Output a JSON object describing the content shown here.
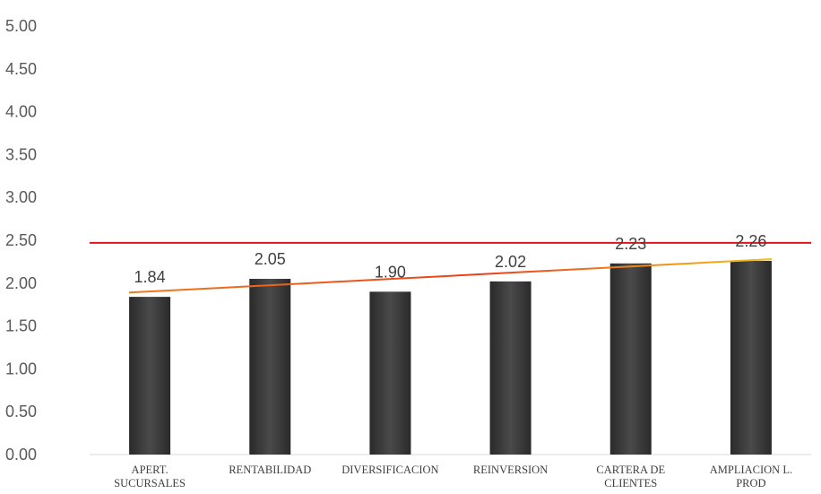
{
  "chart_data": {
    "type": "bar",
    "categories": [
      [
        "APERT.",
        "SUCURSALES"
      ],
      [
        "RENTABILIDAD"
      ],
      [
        "DIVERSIFICACION"
      ],
      [
        "REINVERSION"
      ],
      [
        "CARTERA DE",
        "CLIENTES"
      ],
      [
        "AMPLIACION L.",
        "PROD"
      ]
    ],
    "values": [
      1.84,
      2.05,
      1.9,
      2.02,
      2.23,
      2.26
    ],
    "data_labels": [
      "1.84",
      "2.05",
      "1.90",
      "2.02",
      "2.23",
      "2.26"
    ],
    "yticks": [
      "0.00",
      "0.50",
      "1.00",
      "1.50",
      "2.00",
      "2.50",
      "3.00",
      "3.50",
      "4.00",
      "4.50",
      "5.00"
    ],
    "ylim": [
      0,
      5
    ],
    "reference_line": {
      "value": 2.47,
      "color": "#e0141e"
    },
    "trendline": {
      "start": 1.89,
      "end": 2.28,
      "color_start": "#f07a1e",
      "color_end": "#f3c21a"
    },
    "bar_color": "#3a3a3a",
    "grid": false,
    "legend": "none"
  }
}
